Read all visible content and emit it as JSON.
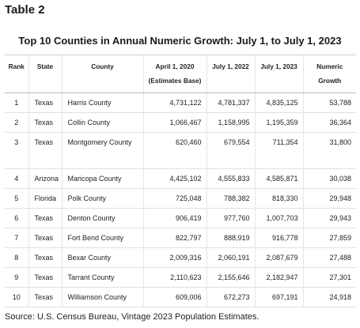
{
  "table_label": "Table 2",
  "title": "Top 10 Counties in Annual Numeric Growth: July 1, to July 1, 2023",
  "headers": {
    "rank": "Rank",
    "state": "State",
    "county": "County",
    "april": "April 1, 2020 (Estimates Base)",
    "july2022": "July 1, 2022",
    "july2023": "July 1, 2023",
    "growth": "Numeric Growth"
  },
  "rows": [
    {
      "rank": "1",
      "state": "Texas",
      "county": "Harris County",
      "april": "4,731,122",
      "july2022": "4,781,337",
      "july2023": "4,835,125",
      "growth": "53,788"
    },
    {
      "rank": "2",
      "state": "Texas",
      "county": "Collin County",
      "april": "1,066,467",
      "july2022": "1,158,995",
      "july2023": "1,195,359",
      "growth": "36,364"
    },
    {
      "rank": "3",
      "state": "Texas",
      "county": "Montgomery County",
      "april": "620,460",
      "july2022": "679,554",
      "july2023": "711,354",
      "growth": "31,800"
    },
    {
      "rank": "4",
      "state": "Arizona",
      "county": "Maricopa County",
      "april": "4,425,102",
      "july2022": "4,555,833",
      "july2023": "4,585,871",
      "growth": "30,038"
    },
    {
      "rank": "5",
      "state": "Florida",
      "county": "Polk County",
      "april": "725,048",
      "july2022": "788,382",
      "july2023": "818,330",
      "growth": "29,948"
    },
    {
      "rank": "6",
      "state": "Texas",
      "county": "Denton County",
      "april": "906,419",
      "july2022": "977,760",
      "july2023": "1,007,703",
      "growth": "29,943"
    },
    {
      "rank": "7",
      "state": "Texas",
      "county": "Fort Bend County",
      "april": "822,797",
      "july2022": "888,919",
      "july2023": "916,778",
      "growth": "27,859"
    },
    {
      "rank": "8",
      "state": "Texas",
      "county": "Bexar County",
      "april": "2,009,316",
      "july2022": "2,060,191",
      "july2023": "2,087,679",
      "growth": "27,488"
    },
    {
      "rank": "9",
      "state": "Texas",
      "county": "Tarrant County",
      "april": "2,110,623",
      "july2022": "2,155,646",
      "july2023": "2,182,947",
      "growth": "27,301"
    },
    {
      "rank": "10",
      "state": "Texas",
      "county": "Williamson County",
      "april": "609,006",
      "july2022": "672,273",
      "july2023": "697,191",
      "growth": "24,918"
    }
  ],
  "source": "Source: U.S. Census Bureau, Vintage 2023 Population Estimates."
}
